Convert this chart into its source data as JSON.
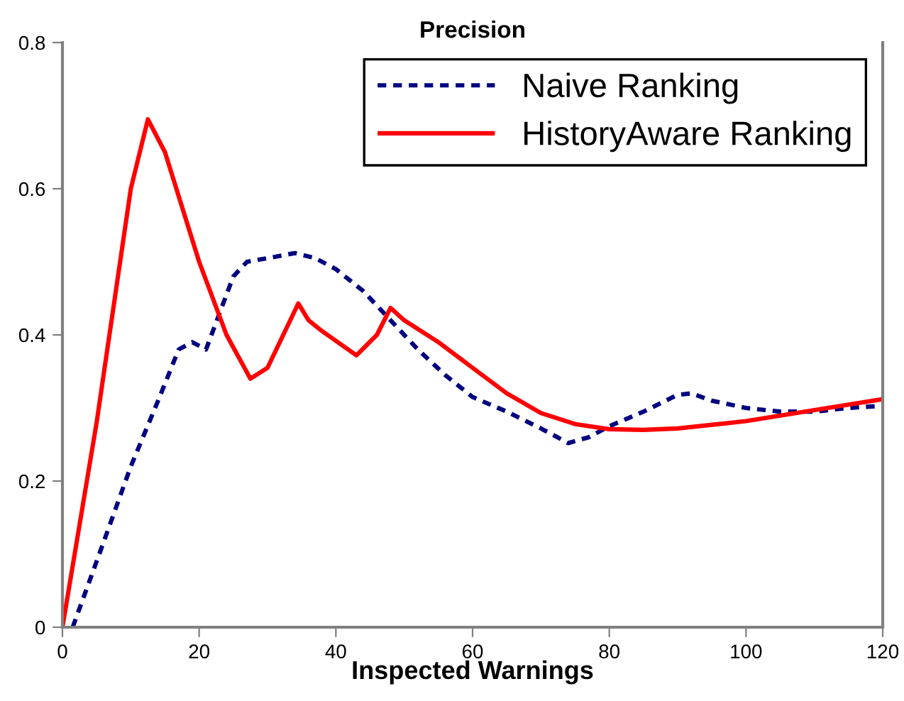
{
  "chart_data": {
    "type": "line",
    "title": "Precision",
    "xlabel": "Inspected Warnings",
    "xlim": [
      0,
      120
    ],
    "xticks": [
      0,
      20,
      40,
      60,
      80,
      100,
      120
    ],
    "ylim": [
      0,
      0.8
    ],
    "yticks": [
      0,
      0.2,
      0.4,
      0.6,
      0.8
    ],
    "grid": false,
    "legend": "top right",
    "series": [
      {
        "name": "Naive Ranking",
        "color": "#000080",
        "line_style": "dotted",
        "x": [
          1.5,
          5,
          10,
          14,
          17,
          19,
          21,
          23,
          25,
          27,
          30,
          34,
          37,
          40,
          44,
          48,
          52,
          56,
          60,
          65,
          70,
          74,
          77,
          80,
          85,
          90,
          92,
          95,
          100,
          105,
          110,
          115,
          120
        ],
        "values": [
          0,
          0.09,
          0.22,
          0.31,
          0.38,
          0.39,
          0.38,
          0.43,
          0.48,
          0.5,
          0.505,
          0.512,
          0.505,
          0.49,
          0.46,
          0.42,
          0.38,
          0.345,
          0.315,
          0.295,
          0.272,
          0.252,
          0.26,
          0.275,
          0.295,
          0.318,
          0.32,
          0.31,
          0.3,
          0.295,
          0.295,
          0.3,
          0.303
        ]
      },
      {
        "name": "HistoryAware Ranking",
        "color": "#ff0000",
        "line_style": "solid",
        "x": [
          0,
          5,
          10,
          12.5,
          15,
          20,
          24,
          27.5,
          30,
          34.5,
          36,
          38,
          43,
          46,
          48,
          50,
          55,
          60,
          65,
          70,
          75,
          80,
          85,
          90,
          100,
          110,
          120
        ],
        "values": [
          0,
          0.28,
          0.6,
          0.695,
          0.65,
          0.5,
          0.4,
          0.34,
          0.355,
          0.443,
          0.42,
          0.405,
          0.372,
          0.4,
          0.437,
          0.42,
          0.39,
          0.355,
          0.32,
          0.293,
          0.278,
          0.271,
          0.27,
          0.272,
          0.282,
          0.297,
          0.312
        ]
      }
    ]
  }
}
